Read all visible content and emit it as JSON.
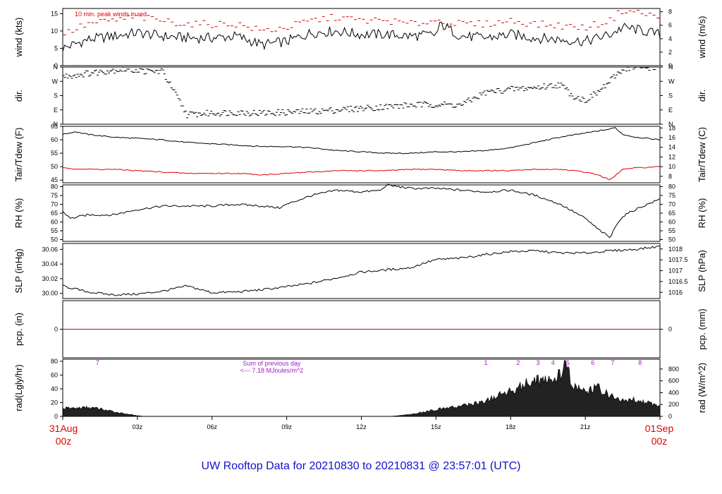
{
  "title": "UW Rooftop Data for 20210830  to  20210831 @ 23:57:01  (UTC)",
  "colors": {
    "series": "#000000",
    "dewpoint": "#e00000",
    "gust": "#e00000",
    "precip": "#e00000",
    "annotation": "#a020c0",
    "title": "#1010d0",
    "edge_labels": "#e00000"
  },
  "x_axis": {
    "range_hours": [
      0,
      24
    ],
    "ticks": [
      {
        "hour": 3,
        "label": "03z"
      },
      {
        "hour": 6,
        "label": "06z"
      },
      {
        "hour": 9,
        "label": "09z"
      },
      {
        "hour": 12,
        "label": "12z"
      },
      {
        "hour": 15,
        "label": "15z"
      },
      {
        "hour": 18,
        "label": "18z"
      },
      {
        "hour": 21,
        "label": "21z"
      }
    ],
    "start_label": {
      "top": "31Aug",
      "bottom": "00z"
    },
    "end_label": {
      "top": "01Sep",
      "bottom": "00z"
    }
  },
  "chart_data": [
    {
      "type": "line",
      "ylabel_left": "wind (kts)",
      "ylabel_right": "wind (m/s)",
      "ylim": [
        0,
        16.5
      ],
      "left_ticks": [
        0,
        5,
        10,
        15
      ],
      "right_ticks": [
        0,
        2,
        4,
        6,
        8
      ],
      "annotation": "10 min. peak winds in red",
      "series": [
        {
          "name": "wind",
          "style": "line",
          "x": [
            0,
            1,
            2,
            3,
            4,
            5,
            6,
            7,
            8,
            9,
            10,
            11,
            12,
            13,
            14,
            15,
            15.2,
            16,
            17,
            18,
            19,
            20,
            21,
            22,
            22.5,
            23,
            24
          ],
          "values": [
            5,
            7.5,
            8.5,
            9.5,
            8.5,
            8,
            8,
            8.5,
            6,
            7,
            9.5,
            10,
            9,
            9,
            8.5,
            9,
            12,
            8.5,
            8,
            9,
            8,
            7.5,
            7,
            9,
            11,
            10.5,
            9
          ]
        },
        {
          "name": "10 min. peak",
          "style": "dash",
          "x": [
            0,
            1,
            2,
            3,
            4,
            5,
            6,
            7,
            8,
            9,
            10,
            11,
            12,
            13,
            14,
            15,
            16,
            17,
            18,
            19,
            20,
            21,
            22,
            22.5,
            23,
            24
          ],
          "values": [
            9,
            12,
            13,
            14,
            13,
            12,
            12,
            12,
            10,
            11,
            13,
            14,
            13,
            13,
            12,
            13,
            12,
            12,
            13,
            12,
            11.5,
            11,
            13,
            16,
            15.5,
            14
          ]
        }
      ]
    },
    {
      "type": "scatter",
      "ylabel_left": "dir.",
      "ylabel_right": "dir.",
      "ylim": [
        0,
        360
      ],
      "tick_values": [
        0,
        90,
        180,
        270,
        360
      ],
      "tick_labels": [
        "N",
        "E",
        "S",
        "W",
        "N"
      ],
      "series": [
        {
          "name": "direction",
          "x": [
            0,
            0.5,
            1,
            1.5,
            2,
            2.5,
            3,
            3.5,
            4,
            5,
            6,
            7,
            8,
            9,
            10,
            11,
            12,
            13,
            14,
            15,
            16,
            16.5,
            17,
            17.5,
            18,
            19,
            20,
            20.5,
            21,
            21.5,
            22,
            22.5,
            23,
            24
          ],
          "values": [
            300,
            310,
            320,
            330,
            340,
            345,
            340,
            330,
            335,
            60,
            70,
            75,
            70,
            75,
            80,
            90,
            100,
            110,
            120,
            125,
            120,
            160,
            200,
            210,
            220,
            230,
            250,
            180,
            150,
            200,
            270,
            350,
            355,
            360
          ]
        }
      ]
    },
    {
      "type": "line",
      "ylabel_left": "Tair/Tdew (F)",
      "ylabel_right": "Tair/Tdew (C)",
      "ylim": [
        44,
        65
      ],
      "left_ticks": [
        45,
        50,
        55,
        60,
        65
      ],
      "right_ticks": [
        8,
        10,
        12,
        14,
        16,
        18
      ],
      "series": [
        {
          "name": "Tair",
          "x": [
            0,
            0.5,
            1,
            2,
            3,
            4,
            5,
            6,
            7,
            8,
            9,
            10,
            11,
            12,
            13,
            14,
            15,
            16,
            17,
            18,
            19,
            20,
            21,
            22,
            22.2,
            22.5,
            23,
            24
          ],
          "values": [
            62,
            63,
            62,
            61,
            60.5,
            60,
            59,
            58.5,
            58,
            57.5,
            57.5,
            57,
            56,
            55.5,
            55,
            55,
            55.5,
            55.5,
            56,
            57,
            59,
            61,
            62.5,
            64,
            64.5,
            62,
            61,
            60
          ]
        },
        {
          "name": "Tdew",
          "x": [
            0,
            1,
            2,
            3,
            4,
            5,
            6,
            7,
            8,
            9,
            10,
            11,
            12,
            13,
            14,
            15,
            16,
            17,
            18,
            19,
            20,
            21,
            21.5,
            22,
            22.5,
            23,
            24
          ],
          "values": [
            49.5,
            49,
            49,
            48.5,
            48,
            47.5,
            47.5,
            47.5,
            47,
            47.5,
            48,
            48.5,
            48.5,
            48.5,
            49,
            49,
            48.5,
            48.5,
            48.5,
            49,
            49,
            48,
            47,
            45,
            49,
            49.5,
            50
          ]
        }
      ]
    },
    {
      "type": "line",
      "ylabel_left": "RH (%)",
      "ylabel_right": "RH (%)",
      "ylim": [
        49,
        81
      ],
      "left_ticks": [
        50,
        55,
        60,
        65,
        70,
        75,
        80
      ],
      "right_ticks": [
        50,
        55,
        60,
        65,
        70,
        75,
        80
      ],
      "series": [
        {
          "name": "RH",
          "x": [
            0,
            0.3,
            1,
            2,
            3,
            4,
            5,
            6,
            7,
            8,
            8.7,
            9,
            10,
            11,
            12,
            12.8,
            13,
            14,
            15,
            16,
            17,
            18,
            19,
            20,
            21,
            21.5,
            22,
            22.3,
            22.6,
            23,
            24
          ],
          "values": [
            66,
            62,
            64,
            64,
            67,
            69,
            69,
            69,
            70,
            69,
            68,
            70,
            75,
            78,
            77,
            78,
            81,
            79,
            79,
            78,
            77,
            78,
            75,
            70,
            62,
            56,
            51,
            60,
            64,
            67,
            73
          ]
        }
      ]
    },
    {
      "type": "line",
      "ylabel_left": "SLP (inHg)",
      "ylabel_right": "SLP (hPa)",
      "ylim": [
        29.993,
        30.068
      ],
      "left_ticks": [
        30.0,
        30.02,
        30.04,
        30.06
      ],
      "left_tick_labels": [
        "30.00",
        "30.02",
        "30.04",
        "30.06"
      ],
      "right_tick_values": [
        30.0014,
        30.0162,
        30.0309,
        30.0457,
        30.0605
      ],
      "right_tick_labels": [
        "1016",
        "1016.5",
        "1017",
        "1017.5",
        "1018"
      ],
      "series": [
        {
          "name": "SLP",
          "x": [
            0,
            1,
            2,
            3,
            4,
            5,
            6,
            7,
            8,
            9,
            10,
            11,
            12,
            13,
            14,
            14.5,
            15,
            16,
            17,
            18,
            19,
            20,
            21,
            22,
            23,
            24
          ],
          "values": [
            30.01,
            30.002,
            29.998,
            29.999,
            30.003,
            30.01,
            30.001,
            30.002,
            30.005,
            30.009,
            30.014,
            30.021,
            30.029,
            30.032,
            30.035,
            30.041,
            30.046,
            30.048,
            30.053,
            30.057,
            30.058,
            30.055,
            30.055,
            30.058,
            30.06,
            30.064
          ]
        }
      ]
    },
    {
      "type": "line",
      "ylabel_left": "pcp. (in)",
      "ylabel_right": "pcp. (mm)",
      "ylim": [
        -1,
        1
      ],
      "left_ticks": [
        0
      ],
      "right_ticks": [
        0
      ],
      "series": [
        {
          "name": "precip",
          "x": [
            0,
            24
          ],
          "values": [
            0,
            0
          ]
        }
      ]
    },
    {
      "type": "area",
      "ylabel_left": "rad(Lgly/hr)",
      "ylabel_right": "rad (W/m^2)",
      "ylim": [
        0,
        83
      ],
      "left_ticks": [
        0,
        20,
        40,
        60,
        80
      ],
      "right_tick_values": [
        0,
        17.2,
        34.4,
        51.6,
        68.8
      ],
      "right_tick_labels": [
        "0",
        "200",
        "400",
        "600",
        "800"
      ],
      "annotations": [
        "Sum of previous day",
        "<--- 7.18 MJoules/m^2"
      ],
      "markers": [
        {
          "hour": 1.4,
          "label": "7"
        },
        {
          "hour": 17,
          "label": "1"
        },
        {
          "hour": 18.3,
          "label": "2"
        },
        {
          "hour": 19.1,
          "label": "3"
        },
        {
          "hour": 19.7,
          "label": "4"
        },
        {
          "hour": 20.3,
          "label": "5"
        },
        {
          "hour": 21.3,
          "label": "6"
        },
        {
          "hour": 22.1,
          "label": "7"
        },
        {
          "hour": 23.2,
          "label": "8"
        }
      ],
      "series": [
        {
          "name": "radiation",
          "x": [
            0,
            0.5,
            1,
            1.5,
            2,
            2.5,
            3,
            3.3,
            13.2,
            14,
            15,
            16,
            17,
            17.5,
            18,
            18.5,
            19,
            19.5,
            20,
            20.2,
            20.5,
            21,
            21.5,
            22,
            22.5,
            23,
            23.5,
            24
          ],
          "values": [
            12,
            12,
            13,
            11,
            7,
            4,
            1,
            0,
            0,
            3,
            10,
            15,
            22,
            30,
            38,
            45,
            55,
            50,
            60,
            75,
            45,
            35,
            42,
            30,
            22,
            25,
            20,
            15
          ]
        }
      ]
    }
  ]
}
